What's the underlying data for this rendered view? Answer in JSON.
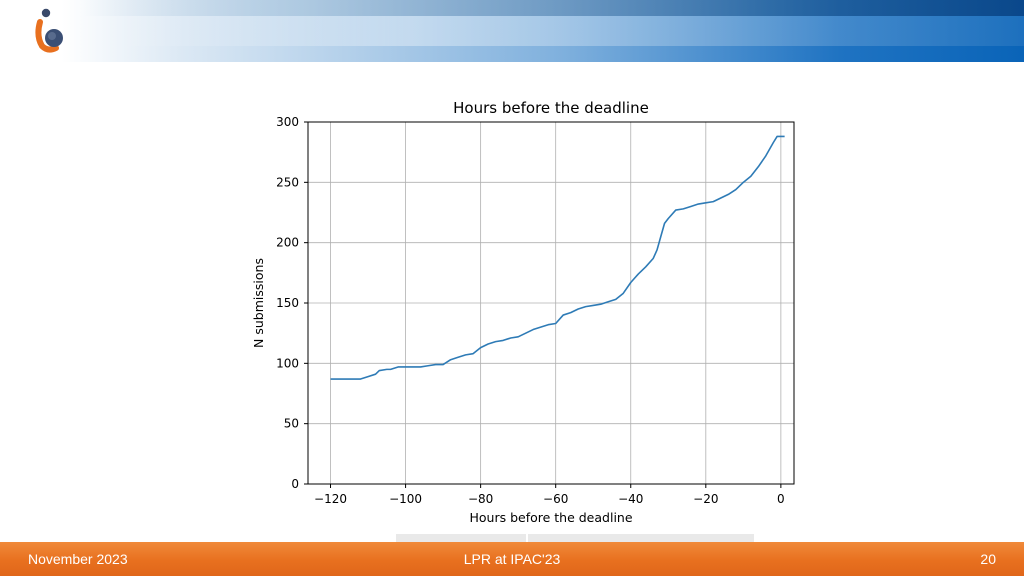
{
  "footer": {
    "date": "November 2023",
    "event": "LPR at IPAC'23",
    "page_number": "20"
  },
  "colors": {
    "series_line": "#2e7bb6",
    "footer_orange": "#e8701f",
    "header_blue": "#0a64b8",
    "grid": "#b0b0b0"
  },
  "icons": {
    "logo": "ipac-logo-icon"
  },
  "chart_data": {
    "type": "line",
    "title": "Hours before the deadline",
    "xlabel": "Hours before the deadline",
    "ylabel": "N submissions",
    "xlim": [
      -126,
      3.5
    ],
    "ylim": [
      0,
      300
    ],
    "xticks": [
      -120,
      -100,
      -80,
      -60,
      -40,
      -20,
      0
    ],
    "xtick_labels": [
      "−120",
      "−100",
      "−80",
      "−60",
      "−40",
      "−20",
      "0"
    ],
    "yticks": [
      0,
      50,
      100,
      150,
      200,
      250,
      300
    ],
    "ytick_labels": [
      "0",
      "50",
      "100",
      "150",
      "200",
      "250",
      "300"
    ],
    "grid": true,
    "series": [
      {
        "x": [
          -120,
          -116,
          -112,
          -110,
          -108,
          -107,
          -105,
          -104,
          -102,
          -100,
          -98,
          -96,
          -94,
          -92,
          -90,
          -88,
          -86,
          -84,
          -82,
          -80,
          -78,
          -76,
          -74,
          -72,
          -70,
          -68,
          -66,
          -64,
          -62,
          -60,
          -58,
          -56,
          -54,
          -52,
          -50,
          -48,
          -46,
          -44,
          -42,
          -40,
          -38,
          -36,
          -34,
          -33,
          -32,
          -31,
          -30,
          -28,
          -26,
          -24,
          -22,
          -20,
          -18,
          -16,
          -14,
          -12,
          -10,
          -8,
          -6,
          -4,
          -2,
          -1,
          0,
          1
        ],
        "y": [
          87,
          87,
          87,
          89,
          91,
          94,
          95,
          95,
          97,
          97,
          97,
          97,
          98,
          99,
          99,
          103,
          105,
          107,
          108,
          113,
          116,
          118,
          119,
          121,
          122,
          125,
          128,
          130,
          132,
          133,
          140,
          142,
          145,
          147,
          148,
          149,
          151,
          153,
          158,
          167,
          174,
          180,
          187,
          194,
          205,
          216,
          220,
          227,
          228,
          230,
          232,
          233,
          234,
          237,
          240,
          244,
          250,
          255,
          263,
          272,
          283,
          288,
          288,
          288
        ]
      }
    ]
  }
}
